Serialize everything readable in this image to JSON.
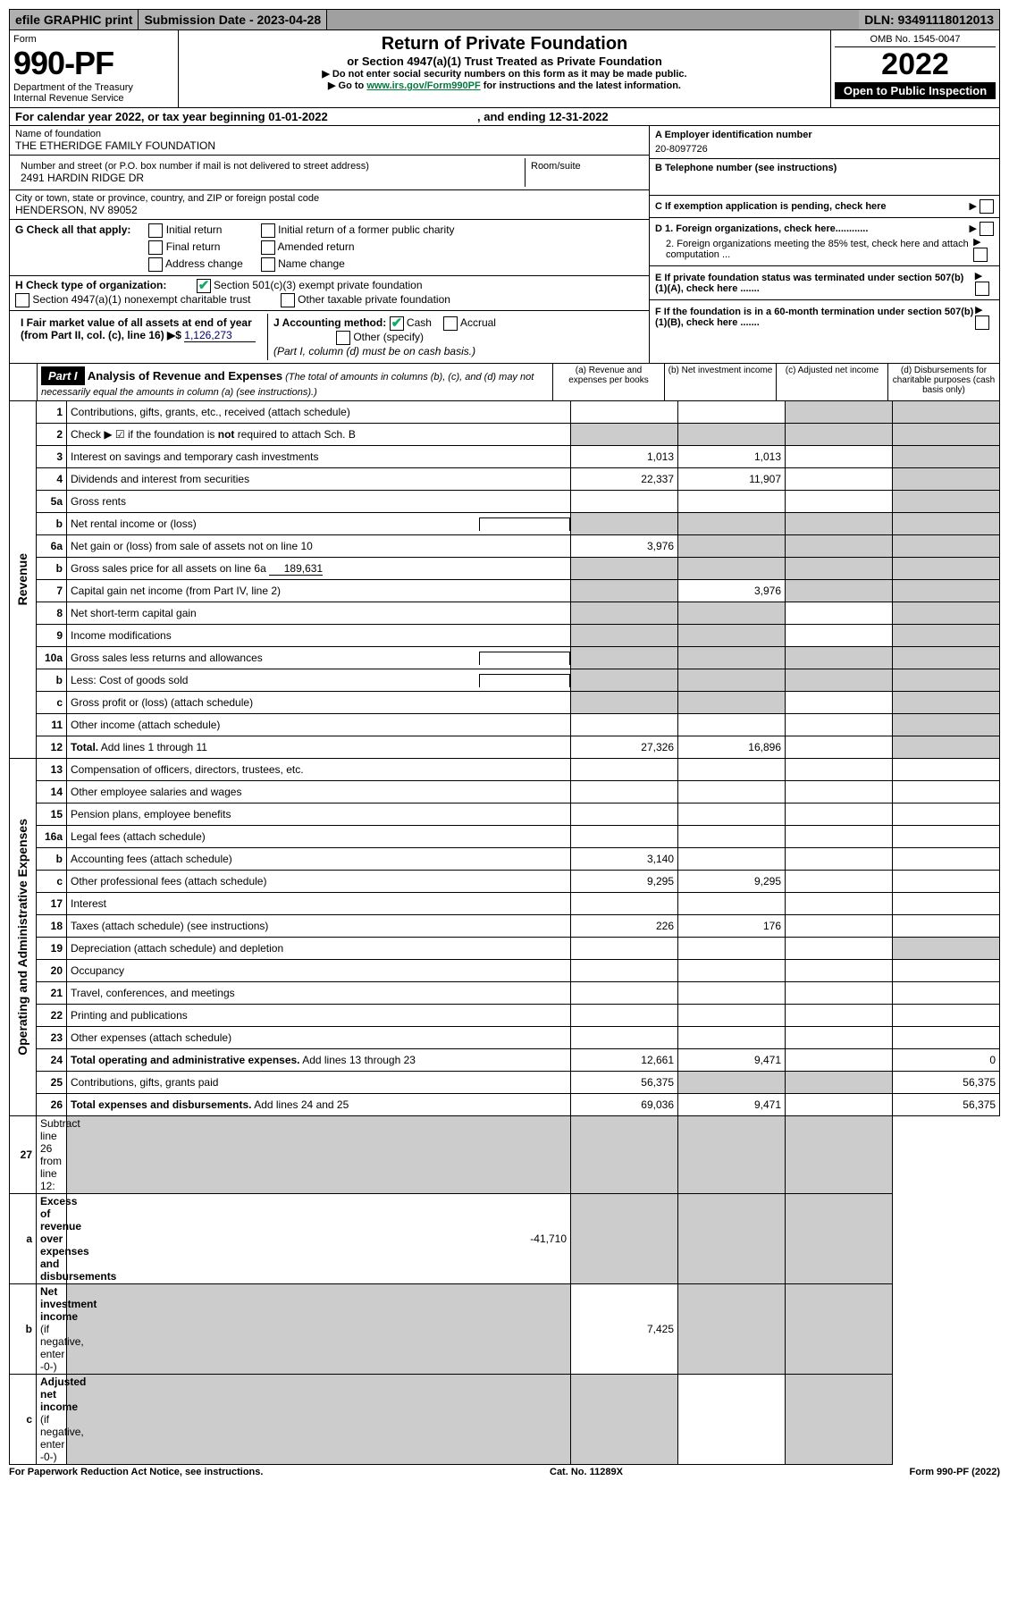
{
  "colors": {
    "header_bg": "#b0b0b0",
    "black": "#000000",
    "shade": "#cccccc",
    "link_green": "#017a3e",
    "check_green": "#1a6"
  },
  "top": {
    "efile": "efile GRAPHIC print",
    "submission": "Submission Date - 2023-04-28",
    "dln": "DLN: 93491118012013"
  },
  "header": {
    "form_label": "Form",
    "form_num": "990-PF",
    "dept": "Department of the Treasury",
    "irs": "Internal Revenue Service",
    "title": "Return of Private Foundation",
    "subtitle": "or Section 4947(a)(1) Trust Treated as Private Foundation",
    "note1": "▶ Do not enter social security numbers on this form as it may be made public.",
    "note2_pre": "▶ Go to ",
    "note2_link": "www.irs.gov/Form990PF",
    "note2_post": " for instructions and the latest information.",
    "omb": "OMB No. 1545-0047",
    "year": "2022",
    "inspection": "Open to Public Inspection"
  },
  "cal": {
    "text_pre": "For calendar year 2022, or tax year beginning ",
    "begin": "01-01-2022",
    "mid": ", and ending ",
    "end": "12-31-2022"
  },
  "name_block": {
    "label": "Name of foundation",
    "value": "THE ETHERIDGE FAMILY FOUNDATION",
    "street_label": "Number and street (or P.O. box number if mail is not delivered to street address)",
    "street": "2491 HARDIN RIDGE DR",
    "room_label": "Room/suite",
    "city_label": "City or town, state or province, country, and ZIP or foreign postal code",
    "city": "HENDERSON, NV  89052"
  },
  "right_info": {
    "a_label": "A Employer identification number",
    "a_value": "20-8097726",
    "b_label": "B Telephone number (see instructions)",
    "c_label": "C If exemption application is pending, check here",
    "d1": "D 1. Foreign organizations, check here............",
    "d2": "2. Foreign organizations meeting the 85% test, check here and attach computation ...",
    "e": "E  If private foundation status was terminated under section 507(b)(1)(A), check here .......",
    "f": "F  If the foundation is in a 60-month termination under section 507(b)(1)(B), check here ......."
  },
  "g_check": {
    "label": "G Check all that apply:",
    "initial": "Initial return",
    "initial_former": "Initial return of a former public charity",
    "final": "Final return",
    "amended": "Amended return",
    "address": "Address change",
    "name": "Name change"
  },
  "h_check": {
    "label": "H Check type of organization:",
    "sec501": "Section 501(c)(3) exempt private foundation",
    "sec4947": "Section 4947(a)(1) nonexempt charitable trust",
    "other_tax": "Other taxable private foundation"
  },
  "i_block": {
    "label": "I Fair market value of all assets at end of year (from Part II, col. (c), line 16)",
    "arrow": "▶$",
    "value": "1,126,273"
  },
  "j_block": {
    "label": "J Accounting method:",
    "cash": "Cash",
    "accrual": "Accrual",
    "other": "Other (specify)",
    "note": "(Part I, column (d) must be on cash basis.)"
  },
  "part1": {
    "label": "Part I",
    "title": "Analysis of Revenue and Expenses",
    "title_note": " (The total of amounts in columns (b), (c), and (d) may not necessarily equal the amounts in column (a) (see instructions).)",
    "col_a": "(a) Revenue and expenses per books",
    "col_b": "(b) Net investment income",
    "col_c": "(c) Adjusted net income",
    "col_d": "(d) Disbursements for charitable purposes (cash basis only)",
    "section_revenue": "Revenue",
    "section_expenses": "Operating and Administrative Expenses"
  },
  "rows": [
    {
      "n": "1",
      "label": "Contributions, gifts, grants, etc., received (attach schedule)",
      "a": "",
      "b": "",
      "c_shade": true,
      "d_shade": true
    },
    {
      "n": "2",
      "label": "Check ▶ ☑ if the foundation is <b>not</b> required to attach Sch. B",
      "a_shade": true,
      "b_shade": true,
      "c_shade": true,
      "d_shade": true,
      "check": true
    },
    {
      "n": "3",
      "label": "Interest on savings and temporary cash investments",
      "a": "1,013",
      "b": "1,013",
      "d_shade": true
    },
    {
      "n": "4",
      "label": "Dividends and interest from securities",
      "a": "22,337",
      "b": "11,907",
      "d_shade": true
    },
    {
      "n": "5a",
      "label": "Gross rents",
      "d_shade": true
    },
    {
      "n": "b",
      "label": "Net rental income or (loss)",
      "a_shade": true,
      "b_shade": true,
      "c_shade": true,
      "d_shade": true,
      "inset": true
    },
    {
      "n": "6a",
      "label": "Net gain or (loss) from sale of assets not on line 10",
      "a": "3,976",
      "b_shade": true,
      "c_shade": true,
      "d_shade": true
    },
    {
      "n": "b",
      "label": "Gross sales price for all assets on line 6a",
      "inset_val": "189,631",
      "a_shade": true,
      "b_shade": true,
      "c_shade": true,
      "d_shade": true
    },
    {
      "n": "7",
      "label": "Capital gain net income (from Part IV, line 2)",
      "a_shade": true,
      "b": "3,976",
      "c_shade": true,
      "d_shade": true
    },
    {
      "n": "8",
      "label": "Net short-term capital gain",
      "a_shade": true,
      "b_shade": true,
      "d_shade": true
    },
    {
      "n": "9",
      "label": "Income modifications",
      "a_shade": true,
      "b_shade": true,
      "d_shade": true
    },
    {
      "n": "10a",
      "label": "Gross sales less returns and allowances",
      "a_shade": true,
      "b_shade": true,
      "c_shade": true,
      "d_shade": true,
      "inset": true
    },
    {
      "n": "b",
      "label": "Less: Cost of goods sold",
      "a_shade": true,
      "b_shade": true,
      "c_shade": true,
      "d_shade": true,
      "inset": true
    },
    {
      "n": "c",
      "label": "Gross profit or (loss) (attach schedule)",
      "a_shade": true,
      "b_shade": true,
      "d_shade": true
    },
    {
      "n": "11",
      "label": "Other income (attach schedule)",
      "d_shade": true
    },
    {
      "n": "12",
      "label": "<b>Total.</b> Add lines 1 through 11",
      "a": "27,326",
      "b": "16,896",
      "d_shade": true
    }
  ],
  "exp_rows": [
    {
      "n": "13",
      "label": "Compensation of officers, directors, trustees, etc."
    },
    {
      "n": "14",
      "label": "Other employee salaries and wages"
    },
    {
      "n": "15",
      "label": "Pension plans, employee benefits"
    },
    {
      "n": "16a",
      "label": "Legal fees (attach schedule)"
    },
    {
      "n": "b",
      "label": "Accounting fees (attach schedule)",
      "a": "3,140"
    },
    {
      "n": "c",
      "label": "Other professional fees (attach schedule)",
      "a": "9,295",
      "b": "9,295"
    },
    {
      "n": "17",
      "label": "Interest"
    },
    {
      "n": "18",
      "label": "Taxes (attach schedule) (see instructions)",
      "a": "226",
      "b": "176"
    },
    {
      "n": "19",
      "label": "Depreciation (attach schedule) and depletion",
      "d_shade": true
    },
    {
      "n": "20",
      "label": "Occupancy"
    },
    {
      "n": "21",
      "label": "Travel, conferences, and meetings"
    },
    {
      "n": "22",
      "label": "Printing and publications"
    },
    {
      "n": "23",
      "label": "Other expenses (attach schedule)"
    },
    {
      "n": "24",
      "label": "<b>Total operating and administrative expenses.</b> Add lines 13 through 23",
      "a": "12,661",
      "b": "9,471",
      "d": "0"
    },
    {
      "n": "25",
      "label": "Contributions, gifts, grants paid",
      "a": "56,375",
      "b_shade": true,
      "c_shade": true,
      "d": "56,375"
    },
    {
      "n": "26",
      "label": "<b>Total expenses and disbursements.</b> Add lines 24 and 25",
      "a": "69,036",
      "b": "9,471",
      "d": "56,375"
    }
  ],
  "final_rows": [
    {
      "n": "27",
      "label": "Subtract line 26 from line 12:",
      "a_shade": true,
      "b_shade": true,
      "c_shade": true,
      "d_shade": true
    },
    {
      "n": "a",
      "label": "<b>Excess of revenue over expenses and disbursements</b>",
      "a": "-41,710",
      "b_shade": true,
      "c_shade": true,
      "d_shade": true
    },
    {
      "n": "b",
      "label": "<b>Net investment income</b> (if negative, enter -0-)",
      "a_shade": true,
      "b": "7,425",
      "c_shade": true,
      "d_shade": true
    },
    {
      "n": "c",
      "label": "<b>Adjusted net income</b> (if negative, enter -0-)",
      "a_shade": true,
      "b_shade": true,
      "d_shade": true
    }
  ],
  "footer": {
    "left": "For Paperwork Reduction Act Notice, see instructions.",
    "mid": "Cat. No. 11289X",
    "right": "Form 990-PF (2022)"
  }
}
